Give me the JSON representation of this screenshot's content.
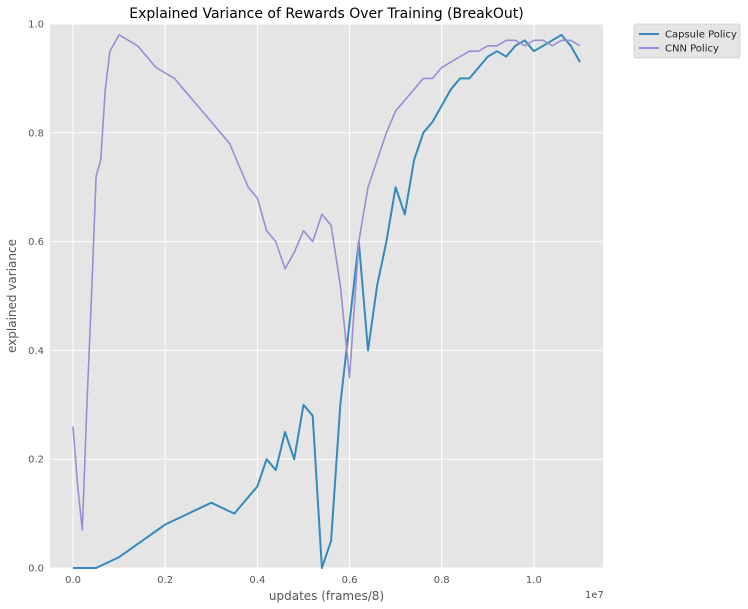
{
  "chart_data": {
    "type": "line",
    "title": "Explained Variance of Rewards Over Training (BreakOut)",
    "xlabel": "updates (frames/8)",
    "ylabel": "explained variance",
    "x_offset_label": "1e7",
    "xlim": [
      -0.05,
      1.15
    ],
    "ylim": [
      0.0,
      1.0
    ],
    "x_ticks": [
      0.0,
      0.2,
      0.4,
      0.6,
      0.8,
      1.0
    ],
    "x_tick_labels": [
      "0.0",
      "0.2",
      "0.4",
      "0.6",
      "0.8",
      "1.0"
    ],
    "y_ticks": [
      0.0,
      0.2,
      0.4,
      0.6,
      0.8,
      1.0
    ],
    "y_tick_labels": [
      "0.0",
      "0.2",
      "0.4",
      "0.6",
      "0.8",
      "1.0"
    ],
    "grid": true,
    "legend_position": "outside-top-right",
    "series": [
      {
        "name": "Capsule Policy",
        "color": "#348ABD",
        "x": [
          0.0,
          0.05,
          0.1,
          0.15,
          0.2,
          0.25,
          0.3,
          0.35,
          0.4,
          0.42,
          0.44,
          0.46,
          0.48,
          0.5,
          0.52,
          0.54,
          0.56,
          0.58,
          0.6,
          0.62,
          0.64,
          0.66,
          0.68,
          0.7,
          0.72,
          0.74,
          0.76,
          0.78,
          0.8,
          0.82,
          0.84,
          0.86,
          0.88,
          0.9,
          0.92,
          0.94,
          0.96,
          0.98,
          1.0,
          1.02,
          1.04,
          1.06,
          1.08,
          1.1
        ],
        "y": [
          0.0,
          0.0,
          0.02,
          0.05,
          0.08,
          0.1,
          0.12,
          0.1,
          0.15,
          0.2,
          0.18,
          0.25,
          0.2,
          0.3,
          0.28,
          0.0,
          0.05,
          0.3,
          0.45,
          0.6,
          0.4,
          0.52,
          0.6,
          0.7,
          0.65,
          0.75,
          0.8,
          0.82,
          0.85,
          0.88,
          0.9,
          0.9,
          0.92,
          0.94,
          0.95,
          0.94,
          0.96,
          0.97,
          0.95,
          0.96,
          0.97,
          0.98,
          0.96,
          0.93
        ]
      },
      {
        "name": "CNN Policy",
        "color": "#988ED5",
        "x": [
          0.0,
          0.01,
          0.02,
          0.03,
          0.04,
          0.05,
          0.06,
          0.07,
          0.08,
          0.1,
          0.12,
          0.14,
          0.16,
          0.18,
          0.2,
          0.22,
          0.24,
          0.26,
          0.28,
          0.3,
          0.32,
          0.34,
          0.36,
          0.38,
          0.4,
          0.42,
          0.44,
          0.46,
          0.48,
          0.5,
          0.52,
          0.54,
          0.56,
          0.58,
          0.6,
          0.62,
          0.64,
          0.66,
          0.68,
          0.7,
          0.72,
          0.74,
          0.76,
          0.78,
          0.8,
          0.82,
          0.84,
          0.86,
          0.88,
          0.9,
          0.92,
          0.94,
          0.96,
          0.98,
          1.0,
          1.02,
          1.04,
          1.06,
          1.08,
          1.1
        ],
        "y": [
          0.26,
          0.15,
          0.07,
          0.3,
          0.5,
          0.72,
          0.75,
          0.88,
          0.95,
          0.98,
          0.97,
          0.96,
          0.94,
          0.92,
          0.91,
          0.9,
          0.88,
          0.86,
          0.84,
          0.82,
          0.8,
          0.78,
          0.74,
          0.7,
          0.68,
          0.62,
          0.6,
          0.55,
          0.58,
          0.62,
          0.6,
          0.65,
          0.63,
          0.52,
          0.35,
          0.6,
          0.7,
          0.75,
          0.8,
          0.84,
          0.86,
          0.88,
          0.9,
          0.9,
          0.92,
          0.93,
          0.94,
          0.95,
          0.95,
          0.96,
          0.96,
          0.97,
          0.97,
          0.96,
          0.97,
          0.97,
          0.96,
          0.97,
          0.97,
          0.96
        ]
      }
    ]
  }
}
